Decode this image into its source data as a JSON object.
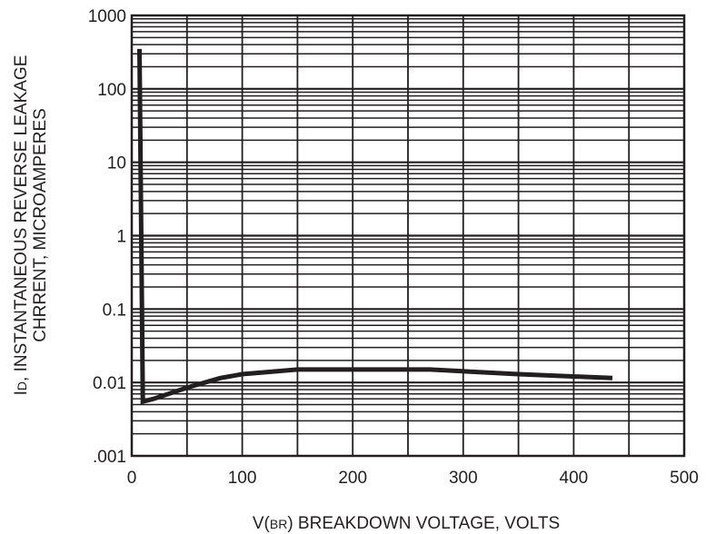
{
  "chart_data": {
    "type": "line",
    "xlabel": {
      "prefix": "V(",
      "subscript": "BR",
      "suffix": ") BREAKDOWN VOLTAGE, VOLTS"
    },
    "ylabel": {
      "line1_prefix": "I",
      "line1_subscript": "D",
      "line1_suffix": ", INSTANTANEOUS REVERSE LEAKAGE",
      "line2": "CHRRENT, MICROAMPERES"
    },
    "x_ticks": [
      {
        "value": 0,
        "label": "0"
      },
      {
        "value": 100,
        "label": "100"
      },
      {
        "value": 200,
        "label": "200"
      },
      {
        "value": 300,
        "label": "300"
      },
      {
        "value": 400,
        "label": "400"
      },
      {
        "value": 500,
        "label": "500"
      }
    ],
    "y_ticks": [
      {
        "value": 0.001,
        "label": ".001"
      },
      {
        "value": 0.01,
        "label": "0.01"
      },
      {
        "value": 0.1,
        "label": "0.1"
      },
      {
        "value": 1,
        "label": "1"
      },
      {
        "value": 10,
        "label": "10"
      },
      {
        "value": 100,
        "label": "100"
      },
      {
        "value": 1000,
        "label": "1000"
      }
    ],
    "xlim": [
      0,
      500
    ],
    "ylim": [
      0.001,
      1000
    ],
    "y_scale": "log",
    "grid": true,
    "series": [
      {
        "x": [
          7,
          10,
          20,
          50,
          80,
          100,
          150,
          200,
          270,
          350,
          435
        ],
        "y": [
          350,
          0.0055,
          0.006,
          0.0085,
          0.0115,
          0.013,
          0.015,
          0.015,
          0.015,
          0.013,
          0.0115
        ]
      }
    ],
    "colors": {
      "line": "#231f20",
      "grid": "#231f20"
    }
  }
}
